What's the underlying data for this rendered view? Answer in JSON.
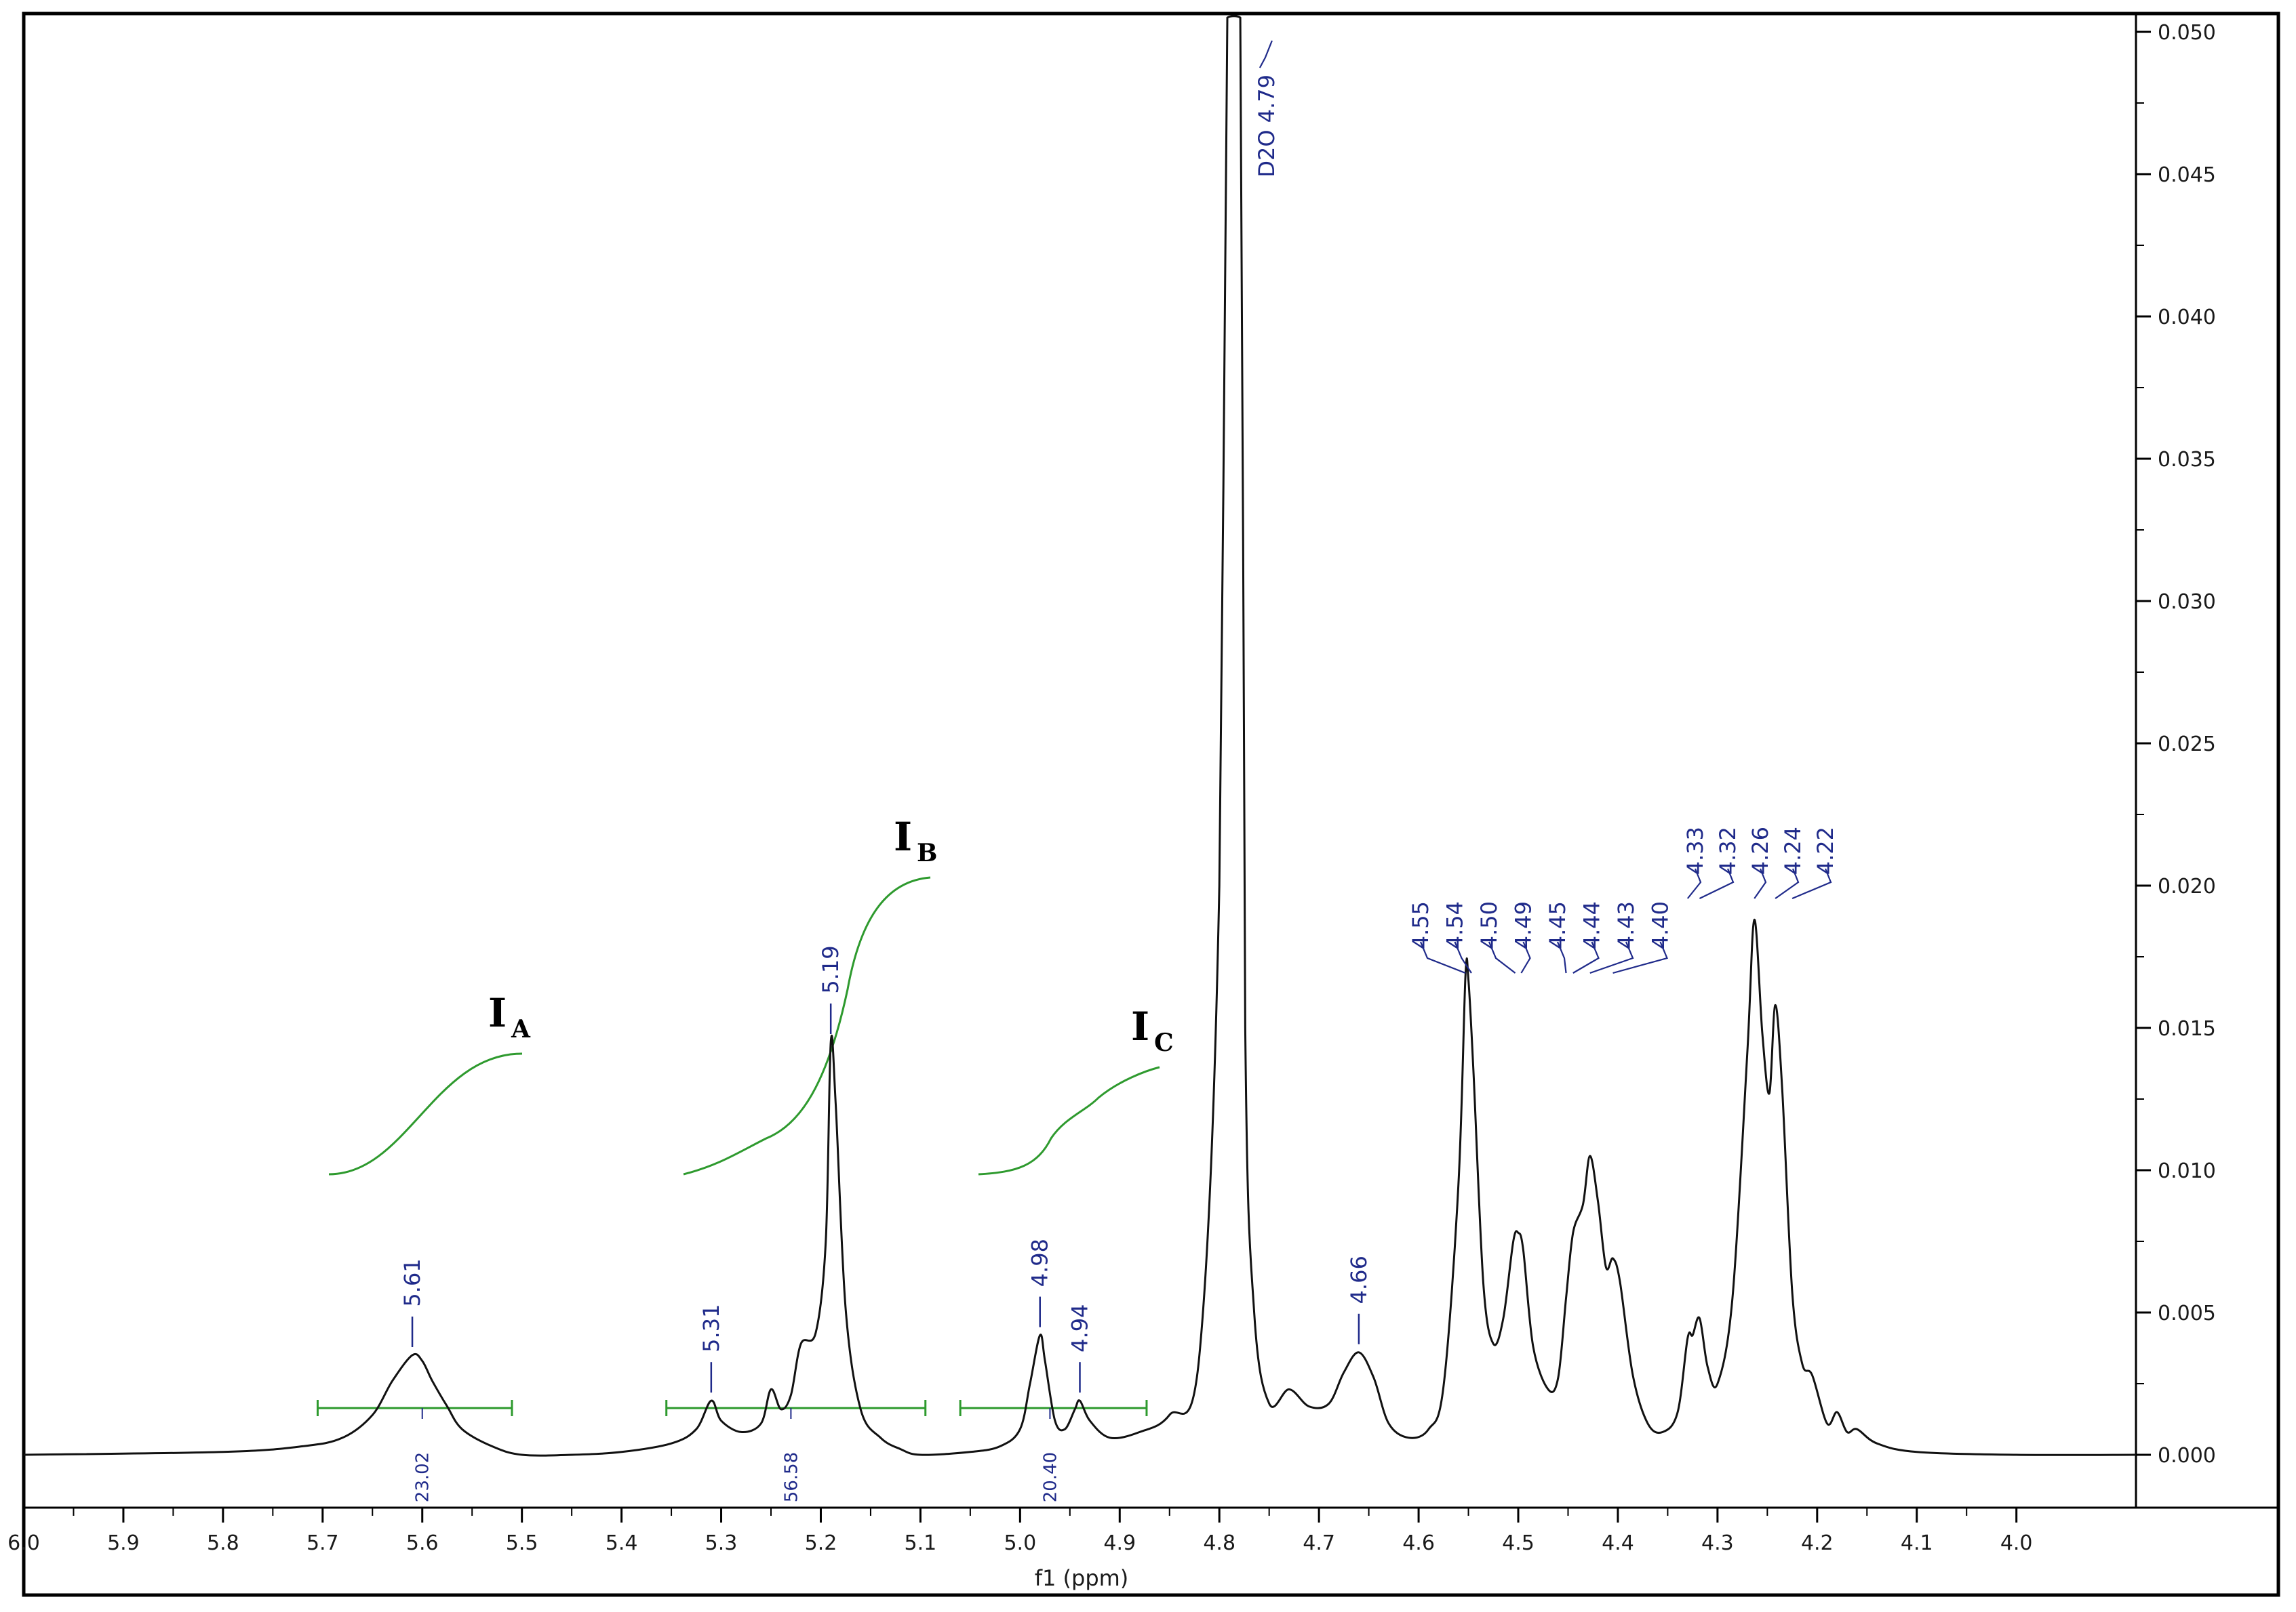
{
  "chart_data": {
    "type": "line",
    "title": "",
    "xlabel": "f1 (ppm)",
    "ylabel": "",
    "x_reversed": true,
    "xlim": [
      6.0,
      3.88
    ],
    "ylim": [
      -0.0018,
      0.0505
    ],
    "x_ticks": [
      6.0,
      5.9,
      5.8,
      5.7,
      5.6,
      5.5,
      5.4,
      5.3,
      5.2,
      5.1,
      5.0,
      4.9,
      4.8,
      4.7,
      4.6,
      4.5,
      4.4,
      4.3,
      4.2,
      4.1,
      4.0
    ],
    "x_tick_labels": [
      "6.0",
      "5.9",
      "5.8",
      "5.7",
      "5.6",
      "5.5",
      "5.4",
      "5.3",
      "5.2",
      "5.1",
      "5.0",
      "4.9",
      "4.8",
      "4.7",
      "4.6",
      "4.5",
      "4.4",
      "4.3",
      "4.2",
      "4.1",
      "4.0"
    ],
    "y_ticks": [
      0.0,
      0.005,
      0.01,
      0.015,
      0.02,
      0.025,
      0.03,
      0.035,
      0.04,
      0.045,
      0.05
    ],
    "y_tick_labels": [
      "0.000",
      "0.005",
      "0.010",
      "0.015",
      "0.020",
      "0.025",
      "0.030",
      "0.035",
      "0.040",
      "0.045",
      "0.050"
    ],
    "y_axis_position": "right",
    "grid": false,
    "colors": {
      "spectrum": "#111111",
      "integral": "#2e9a2e",
      "label": "#1f2a8a"
    },
    "spectrum": [
      [
        6.0,
        0.0
      ],
      [
        5.8,
        0.0001
      ],
      [
        5.72,
        0.0003
      ],
      [
        5.68,
        0.0006
      ],
      [
        5.65,
        0.0014
      ],
      [
        5.63,
        0.0026
      ],
      [
        5.61,
        0.0035
      ],
      [
        5.6,
        0.0033
      ],
      [
        5.59,
        0.0026
      ],
      [
        5.575,
        0.0017
      ],
      [
        5.56,
        0.0009
      ],
      [
        5.53,
        0.0003
      ],
      [
        5.5,
        0.0
      ],
      [
        5.45,
        0.0
      ],
      [
        5.4,
        0.0001
      ],
      [
        5.35,
        0.0004
      ],
      [
        5.325,
        0.0009
      ],
      [
        5.31,
        0.0019
      ],
      [
        5.3,
        0.0012
      ],
      [
        5.28,
        0.0008
      ],
      [
        5.26,
        0.0011
      ],
      [
        5.25,
        0.0023
      ],
      [
        5.24,
        0.0016
      ],
      [
        5.23,
        0.0021
      ],
      [
        5.22,
        0.0039
      ],
      [
        5.205,
        0.0043
      ],
      [
        5.195,
        0.0075
      ],
      [
        5.19,
        0.0145
      ],
      [
        5.185,
        0.0123
      ],
      [
        5.175,
        0.0051
      ],
      [
        5.16,
        0.0016
      ],
      [
        5.14,
        0.0006
      ],
      [
        5.12,
        0.0002
      ],
      [
        5.1,
        0.0
      ],
      [
        5.05,
        0.0001
      ],
      [
        5.02,
        0.0003
      ],
      [
        5.0,
        0.0009
      ],
      [
        4.99,
        0.0025
      ],
      [
        4.98,
        0.0042
      ],
      [
        4.975,
        0.0033
      ],
      [
        4.965,
        0.0012
      ],
      [
        4.955,
        0.0009
      ],
      [
        4.945,
        0.0016
      ],
      [
        4.94,
        0.0019
      ],
      [
        4.93,
        0.0012
      ],
      [
        4.91,
        0.0006
      ],
      [
        4.88,
        0.0008
      ],
      [
        4.85,
        0.0014
      ],
      [
        4.82,
        0.0035
      ],
      [
        4.8,
        0.02
      ],
      [
        4.792,
        0.0505
      ],
      [
        4.779,
        0.0505
      ],
      [
        4.774,
        0.015
      ],
      [
        4.765,
        0.005
      ],
      [
        4.75,
        0.0018
      ],
      [
        4.73,
        0.0023
      ],
      [
        4.71,
        0.0017
      ],
      [
        4.69,
        0.0018
      ],
      [
        4.675,
        0.0029
      ],
      [
        4.66,
        0.0036
      ],
      [
        4.645,
        0.0027
      ],
      [
        4.63,
        0.0011
      ],
      [
        4.61,
        0.0006
      ],
      [
        4.59,
        0.0009
      ],
      [
        4.575,
        0.0024
      ],
      [
        4.56,
        0.0095
      ],
      [
        4.553,
        0.0168
      ],
      [
        4.55,
        0.0167
      ],
      [
        4.545,
        0.0135
      ],
      [
        4.535,
        0.006
      ],
      [
        4.525,
        0.0039
      ],
      [
        4.515,
        0.0048
      ],
      [
        4.505,
        0.0075
      ],
      [
        4.5,
        0.0078
      ],
      [
        4.495,
        0.0072
      ],
      [
        4.485,
        0.0038
      ],
      [
        4.47,
        0.0023
      ],
      [
        4.46,
        0.0027
      ],
      [
        4.452,
        0.0055
      ],
      [
        4.445,
        0.0078
      ],
      [
        4.435,
        0.0088
      ],
      [
        4.428,
        0.0105
      ],
      [
        4.42,
        0.0089
      ],
      [
        4.412,
        0.0066
      ],
      [
        4.405,
        0.0069
      ],
      [
        4.398,
        0.0061
      ],
      [
        4.385,
        0.0028
      ],
      [
        4.37,
        0.0011
      ],
      [
        4.355,
        0.0008
      ],
      [
        4.34,
        0.0015
      ],
      [
        4.33,
        0.0041
      ],
      [
        4.325,
        0.0042
      ],
      [
        4.318,
        0.0048
      ],
      [
        4.31,
        0.0031
      ],
      [
        4.3,
        0.0025
      ],
      [
        4.285,
        0.0055
      ],
      [
        4.27,
        0.0142
      ],
      [
        4.263,
        0.0188
      ],
      [
        4.255,
        0.0148
      ],
      [
        4.248,
        0.0127
      ],
      [
        4.242,
        0.0158
      ],
      [
        4.235,
        0.0128
      ],
      [
        4.225,
        0.0057
      ],
      [
        4.215,
        0.0032
      ],
      [
        4.205,
        0.0028
      ],
      [
        4.19,
        0.0011
      ],
      [
        4.18,
        0.0015
      ],
      [
        4.17,
        0.0008
      ],
      [
        4.16,
        0.0009
      ],
      [
        4.14,
        0.0004
      ],
      [
        4.1,
        0.0001
      ],
      [
        4.0,
        0.0
      ],
      [
        3.88,
        0.0
      ]
    ],
    "peak_labels": [
      {
        "text": "5.61",
        "x": 5.61,
        "y": 0.0035
      },
      {
        "text": "5.31",
        "x": 5.31,
        "y": 0.0019
      },
      {
        "text": "5.19",
        "x": 5.19,
        "y": 0.0145
      },
      {
        "text": "4.98",
        "x": 4.98,
        "y": 0.0042
      },
      {
        "text": "4.94",
        "x": 4.94,
        "y": 0.0019
      },
      {
        "text": "4.66",
        "x": 4.66,
        "y": 0.0036
      }
    ],
    "multiplet_labels": [
      {
        "text": "4.55",
        "x": 4.553
      },
      {
        "text": "4.54",
        "x": 4.547
      },
      {
        "text": "4.50",
        "x": 4.503
      },
      {
        "text": "4.49",
        "x": 4.497
      },
      {
        "text": "4.45",
        "x": 4.452
      },
      {
        "text": "4.44",
        "x": 4.445
      },
      {
        "text": "4.43",
        "x": 4.428
      },
      {
        "text": "4.40",
        "x": 4.405
      }
    ],
    "multiplet_labels_right": [
      {
        "text": "4.33",
        "x": 4.33
      },
      {
        "text": "4.32",
        "x": 4.318
      },
      {
        "text": "4.26",
        "x": 4.263
      },
      {
        "text": "4.24",
        "x": 4.242
      },
      {
        "text": "4.22",
        "x": 4.225
      }
    ],
    "solvent_label": {
      "text": "D2O 4.79",
      "x": 4.79
    },
    "integrals": [
      {
        "name": "I",
        "sub": "A",
        "value": "23.02",
        "x_from": 5.705,
        "x_to": 5.51,
        "label_x": 5.6
      },
      {
        "name": "I",
        "sub": "B",
        "value": "56.58",
        "x_from": 5.355,
        "x_to": 5.095,
        "label_x": 5.23
      },
      {
        "name": "I",
        "sub": "C",
        "value": "20.40",
        "x_from": 5.06,
        "x_to": 4.873,
        "label_x": 4.97
      }
    ]
  }
}
